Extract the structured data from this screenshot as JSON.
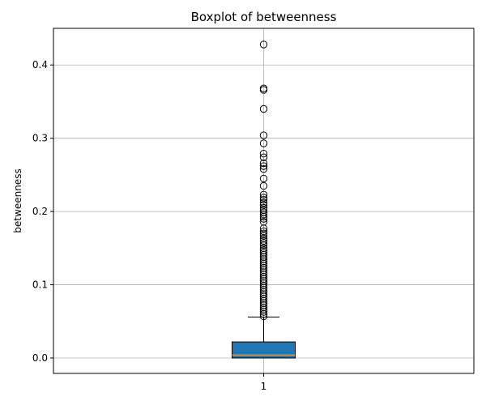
{
  "chart_data": {
    "type": "boxplot",
    "title": "Boxplot of betweenness",
    "xlabel": "",
    "ylabel": "betweenness",
    "categories": [
      "1"
    ],
    "ylim": [
      -0.021,
      0.45
    ],
    "yticks": [
      0.0,
      0.1,
      0.2,
      0.3,
      0.4
    ],
    "ytick_labels": [
      "0.0",
      "0.1",
      "0.2",
      "0.3",
      "0.4"
    ],
    "grid": true,
    "box": {
      "whisker_low": 0.0,
      "q1": 0.0,
      "median": 0.004,
      "q3": 0.022,
      "whisker_high": 0.056
    },
    "outliers": [
      0.428,
      0.368,
      0.366,
      0.34,
      0.304,
      0.293,
      0.279,
      0.274,
      0.266,
      0.262,
      0.258,
      0.245,
      0.235,
      0.223,
      0.219,
      0.216,
      0.212,
      0.209,
      0.205,
      0.202,
      0.199,
      0.196,
      0.193,
      0.19,
      0.186,
      0.177,
      0.173,
      0.17,
      0.167,
      0.163,
      0.16,
      0.157,
      0.154,
      0.15,
      0.147,
      0.144,
      0.141,
      0.138,
      0.135,
      0.132,
      0.129,
      0.126,
      0.123,
      0.12,
      0.117,
      0.114,
      0.111,
      0.108,
      0.105,
      0.102,
      0.099,
      0.096,
      0.093,
      0.09,
      0.087,
      0.084,
      0.081,
      0.078,
      0.075,
      0.072,
      0.069,
      0.066,
      0.063,
      0.06,
      0.057
    ],
    "colors": {
      "box_fill": "#1f77b4",
      "median": "#d89b55",
      "grid": "#b0b0b0"
    }
  }
}
